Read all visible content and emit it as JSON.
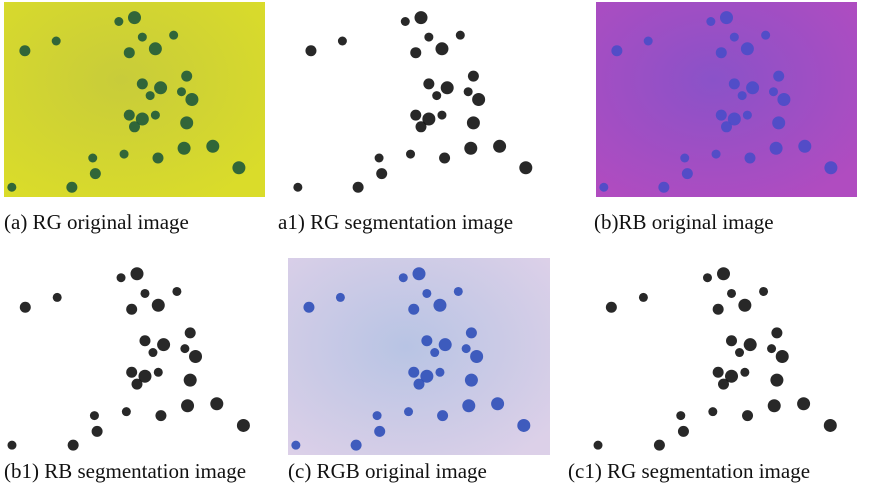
{
  "panels": [
    {
      "caption": "(a) RG original image"
    },
    {
      "caption": "a1) RG segmentation image"
    },
    {
      "caption": "(b)RB original image"
    },
    {
      "caption": "(b1) RB segmentation image"
    },
    {
      "caption": "(c) RGB original image"
    },
    {
      "caption": "(c1) RG segmentation image"
    }
  ]
}
